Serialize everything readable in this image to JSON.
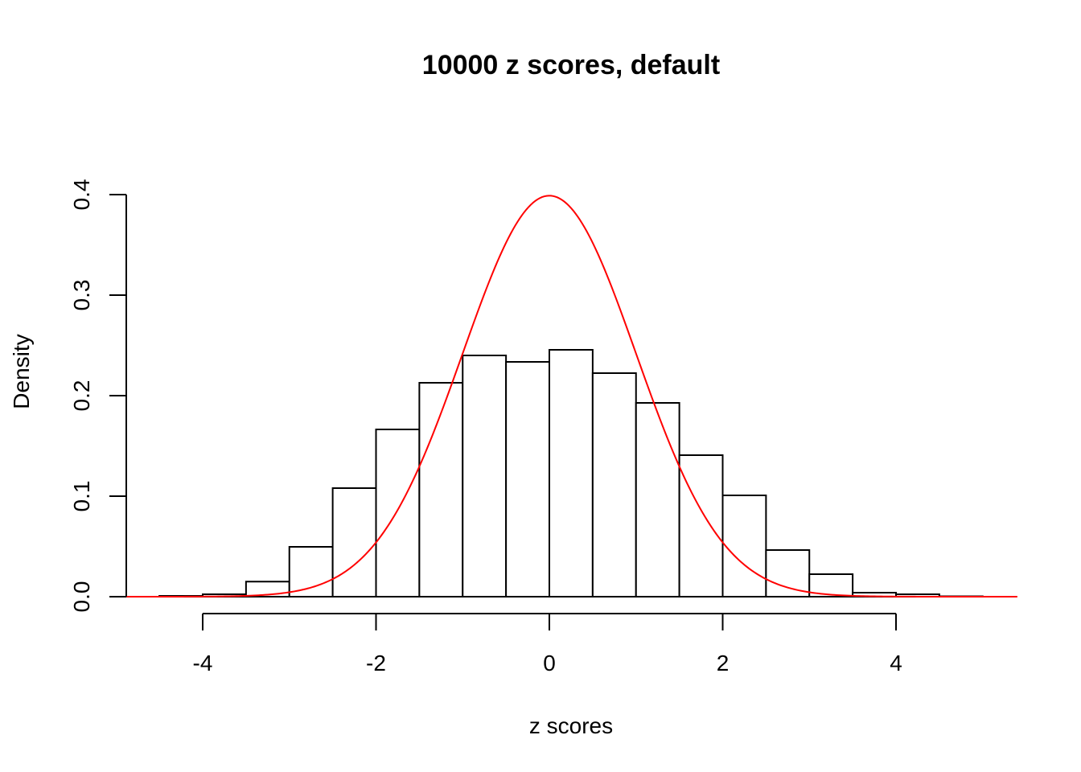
{
  "chart_data": {
    "type": "bar",
    "title": "10000 z scores, default",
    "xlabel": "z scores",
    "ylabel": "Density",
    "bin_edges": [
      -4.5,
      -4,
      -3.5,
      -3,
      -2.5,
      -2,
      -1.5,
      -1,
      -0.5,
      0,
      0.5,
      1,
      1.5,
      2,
      2.5,
      3,
      3.5,
      4,
      4.5,
      5
    ],
    "values": [
      0.0008,
      0.0024,
      0.015,
      0.0496,
      0.108,
      0.1664,
      0.2128,
      0.24,
      0.2336,
      0.2456,
      0.2224,
      0.1928,
      0.1408,
      0.1008,
      0.0464,
      0.0224,
      0.004,
      0.0024,
      0.0004
    ],
    "overlay_curve": {
      "type": "line",
      "function": "standard normal density",
      "mean": 0,
      "sd": 1,
      "x_range": [
        -4.9,
        5.4
      ],
      "color": "#ff0000"
    },
    "xticks": [
      "-4",
      "-2",
      "0",
      "2",
      "4"
    ],
    "xtick_values": [
      -4,
      -2,
      0,
      2,
      4
    ],
    "yticks": [
      "0.0",
      "0.1",
      "0.2",
      "0.3",
      "0.4"
    ],
    "ytick_values": [
      0,
      0.1,
      0.2,
      0.3,
      0.4
    ],
    "xlim": [
      -4.9,
      5.4
    ],
    "ylim": [
      0,
      0.4
    ],
    "grid": false,
    "bar_fill": "#ffffff",
    "bar_stroke": "#000000"
  }
}
